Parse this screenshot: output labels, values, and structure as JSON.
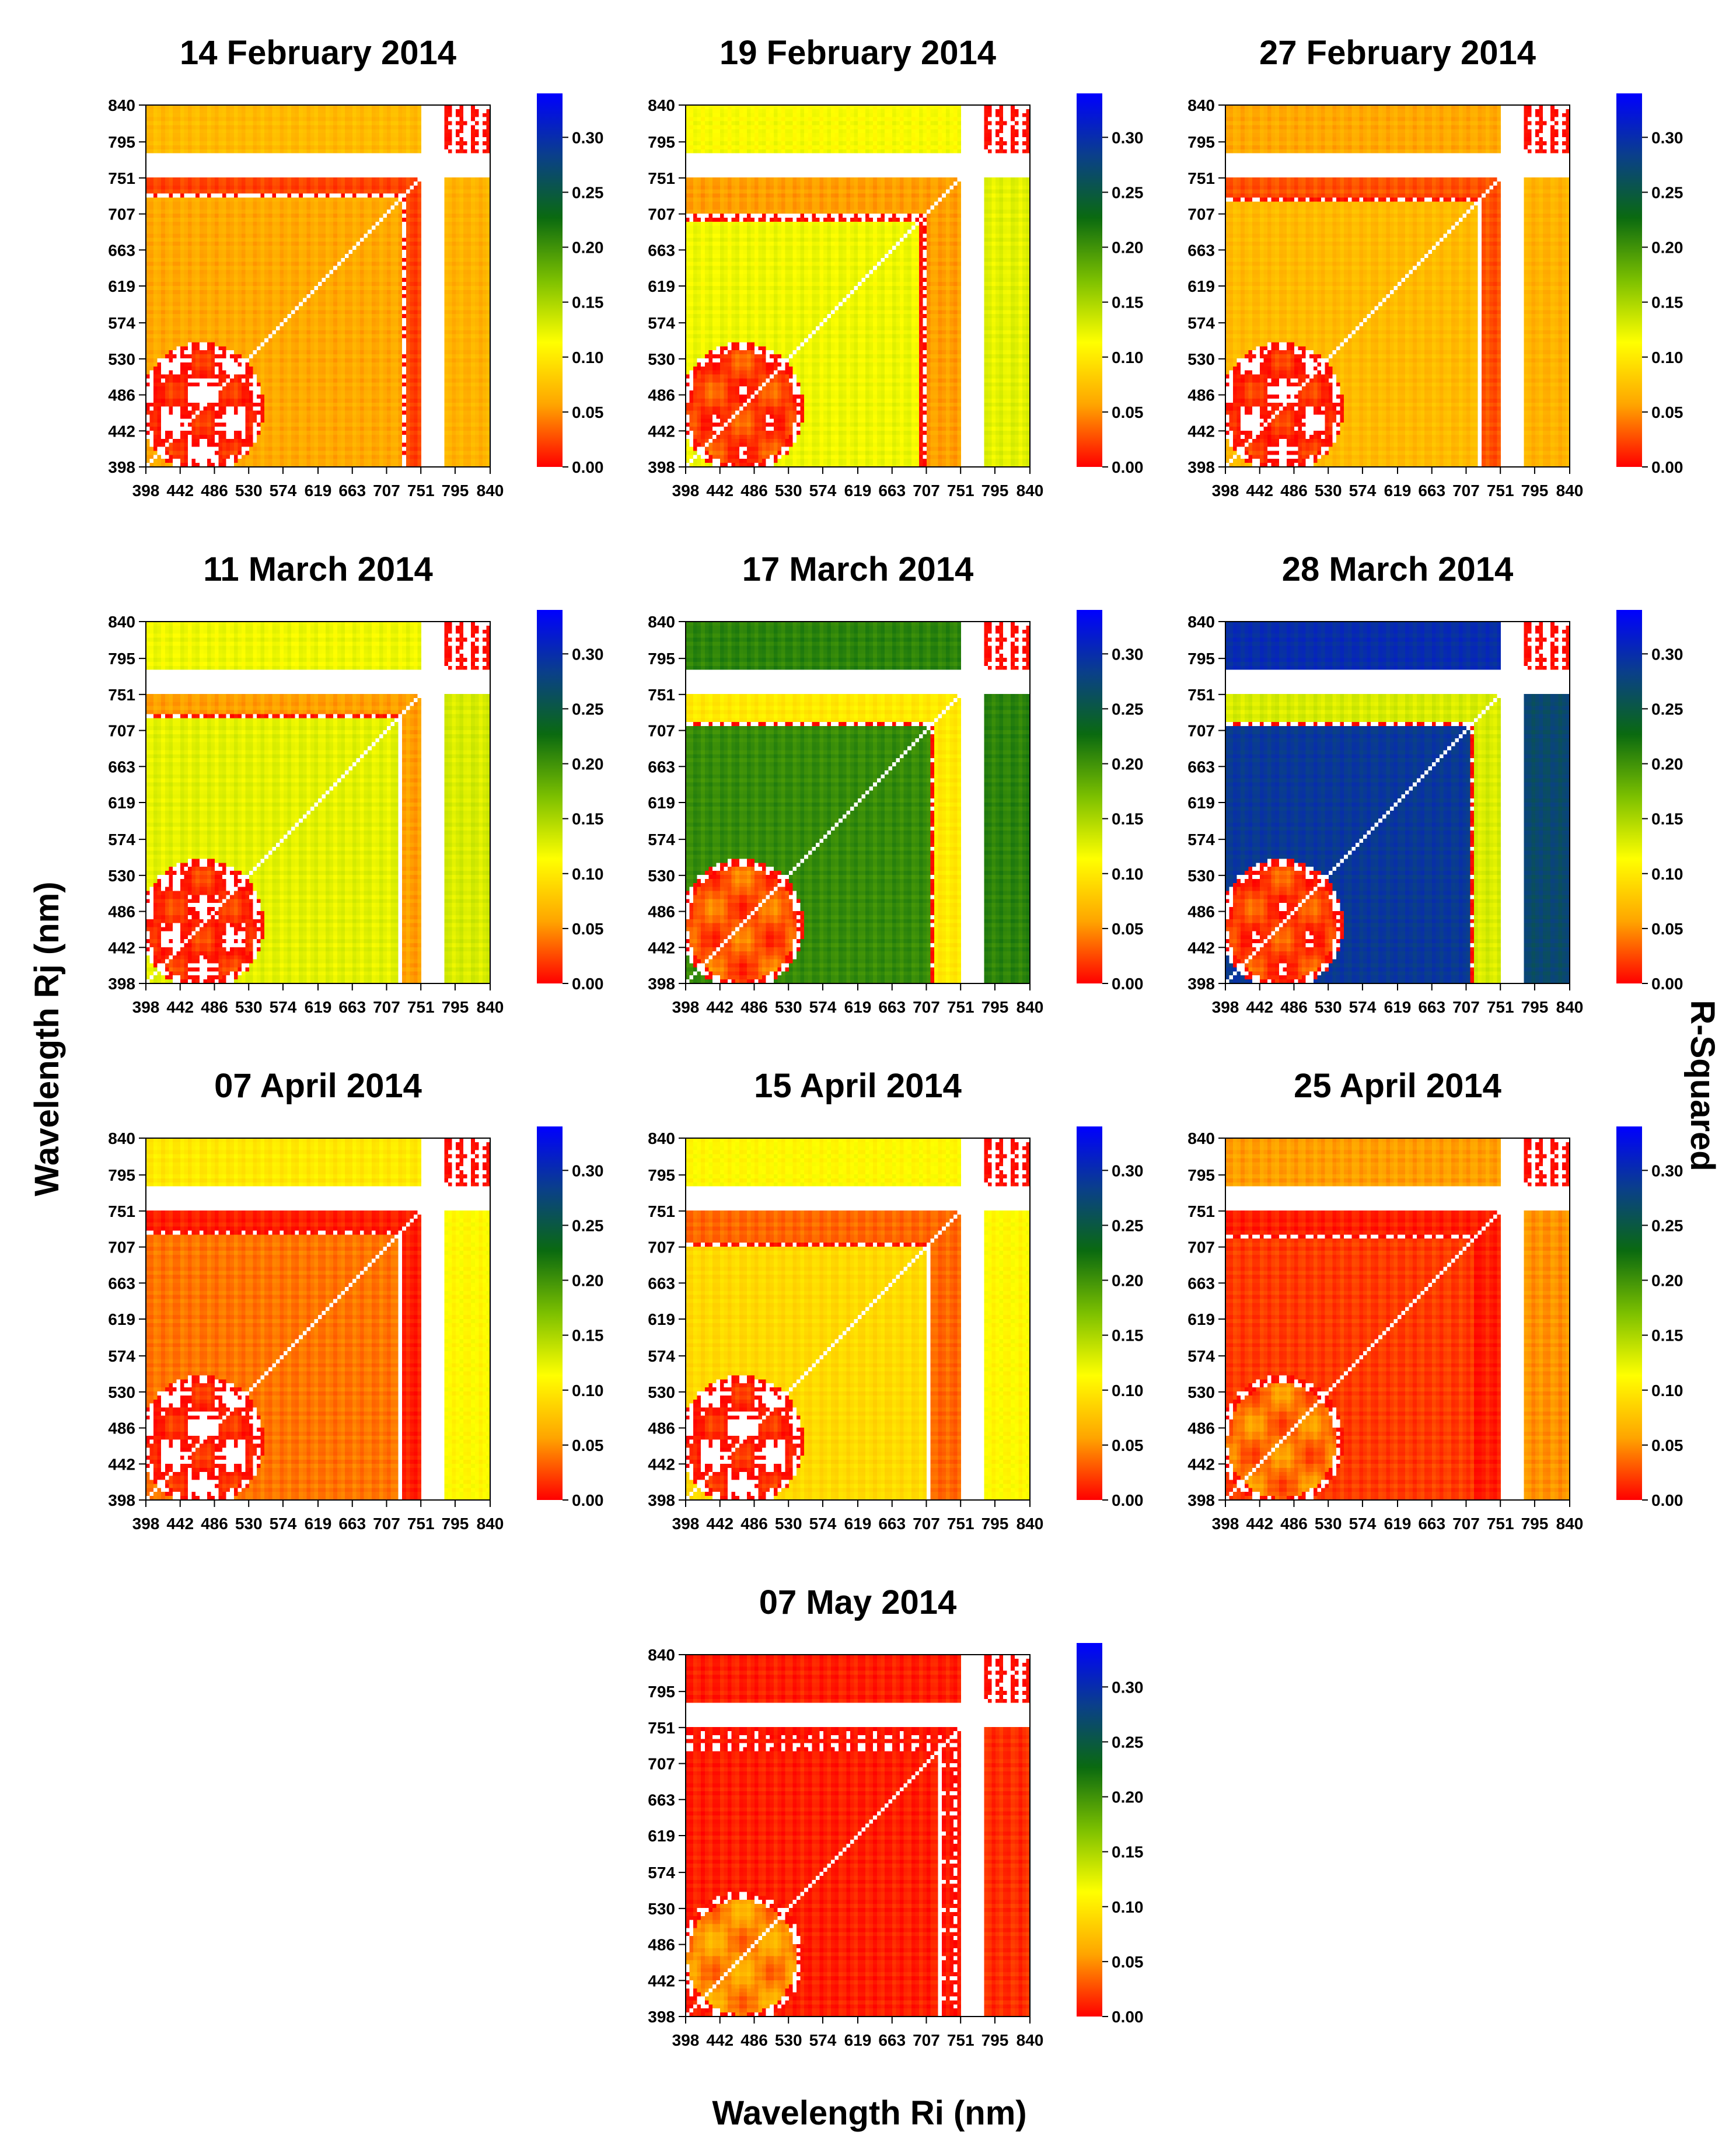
{
  "figure": {
    "xlabel": "Wavelength Ri (nm)",
    "ylabel": "Wavelength Rj (nm)",
    "colorbar_label": "R-Squared"
  },
  "colors": {
    "scale": [
      "#ff0000",
      "#ffa500",
      "#ffff00",
      "#7cc000",
      "#0a6a10",
      "#0a3f8a",
      "#0000ff"
    ],
    "gap": "#ffffff",
    "diagonal": "#ffffff"
  },
  "chart_data": {
    "type": "heatmap",
    "wavelength_ticks": [
      398,
      442,
      486,
      530,
      574,
      619,
      663,
      707,
      751,
      795,
      840
    ],
    "tick_labels": [
      "398",
      "442",
      "486",
      "530",
      "574",
      "619",
      "663",
      "707",
      "751",
      "795",
      "840"
    ],
    "value_range": [
      0,
      0.34
    ],
    "colorbar_ticks": [
      0.0,
      0.05,
      0.1,
      0.15,
      0.2,
      0.25,
      0.3
    ],
    "colorbar_tick_labels": [
      "0.00",
      "0.05",
      "0.10",
      "0.15",
      "0.20",
      "0.25",
      "0.30"
    ],
    "missing_band_nm": [
      752,
      781
    ],
    "panels": [
      {
        "title": "14 February 2014",
        "base": 0.045,
        "region_main": 0.06,
        "region_top": 0.07,
        "region_right": 0.065,
        "blob_low": 0.005,
        "edge_nm": 730
      },
      {
        "title": "19 February 2014",
        "base": 0.11,
        "region_main": 0.12,
        "region_top": 0.115,
        "region_right": 0.125,
        "blob_low": 0.02,
        "edge_nm": 705
      },
      {
        "title": "27 February 2014",
        "base": 0.055,
        "region_main": 0.07,
        "region_top": 0.06,
        "region_right": 0.065,
        "blob_low": 0.008,
        "edge_nm": 728
      },
      {
        "title": "11 March 2014",
        "base": 0.11,
        "region_main": 0.125,
        "region_top": 0.12,
        "region_right": 0.13,
        "blob_low": 0.01,
        "edge_nm": 725
      },
      {
        "title": "17 March 2014",
        "base": 0.2,
        "region_main": 0.205,
        "region_top": 0.21,
        "region_right": 0.21,
        "blob_low": 0.03,
        "edge_nm": 715
      },
      {
        "title": "28 March 2014",
        "base": 0.26,
        "region_main": 0.29,
        "region_top": 0.3,
        "region_right": 0.27,
        "blob_low": 0.02,
        "edge_nm": 718
      },
      {
        "title": "07 April 2014",
        "base": 0.02,
        "region_main": 0.04,
        "region_top": 0.1,
        "region_right": 0.11,
        "blob_low": 0.005,
        "edge_nm": 725
      },
      {
        "title": "15 April 2014",
        "base": 0.07,
        "region_main": 0.09,
        "region_top": 0.11,
        "region_right": 0.11,
        "blob_low": 0.005,
        "edge_nm": 712
      },
      {
        "title": "25 April 2014",
        "base": 0.02,
        "region_main": 0.02,
        "region_top": 0.055,
        "region_right": 0.05,
        "blob_low": 0.04,
        "edge_nm": 722
      },
      {
        "title": "07 May 2014",
        "base": 0.01,
        "region_main": 0.01,
        "region_top": 0.01,
        "region_right": 0.015,
        "blob_low": 0.05,
        "edge_nm": 728
      }
    ]
  }
}
